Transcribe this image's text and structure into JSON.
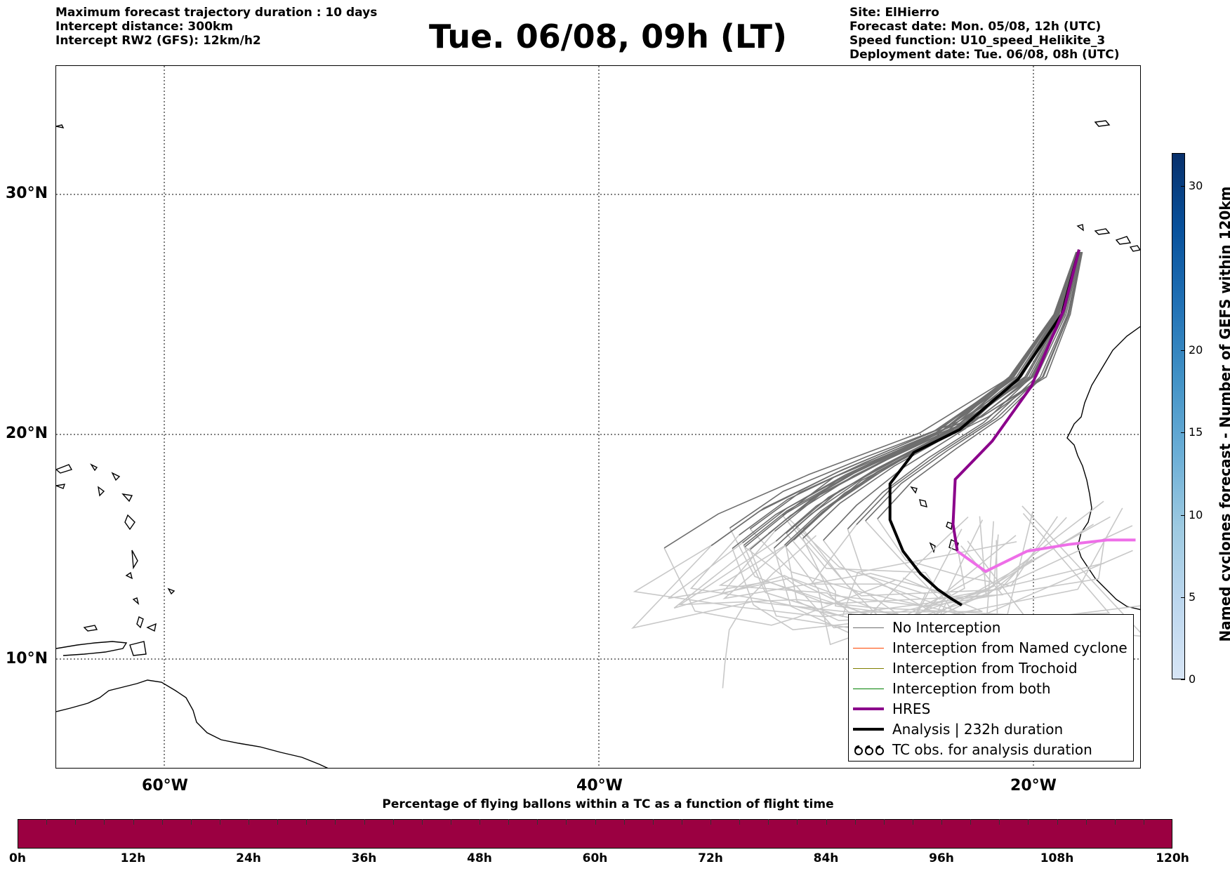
{
  "header": {
    "left_lines": [
      "Maximum forecast trajectory duration : 10 days",
      "Intercept distance: 300km",
      "Intercept RW2 (GFS):  12km/h2"
    ],
    "title": "Tue. 06/08, 09h (LT)",
    "right_lines": [
      "Site: ElHierro",
      "Forecast date: Mon. 05/08, 12h (UTC)",
      "Speed function: U10_speed_Helikite_3",
      "Deployment date: Tue. 06/08, 08h (UTC)"
    ]
  },
  "map": {
    "lon_range": [
      -65,
      15
    ],
    "lat_range": [
      4.5,
      33.8
    ],
    "gridline_style": "dotted",
    "latitude_labels": [
      {
        "lat": 30,
        "text": "30°N"
      },
      {
        "lat": 20,
        "text": "20°N"
      },
      {
        "lat": 10,
        "text": "10°N"
      }
    ],
    "longitude_labels": [
      {
        "lon": -60,
        "text": "60°W"
      },
      {
        "lon": -40,
        "text": "40°W"
      },
      {
        "lon": -20,
        "text": "20°W"
      }
    ],
    "colors": {
      "no_interception": "#6e6e6e",
      "light_trajectories": "#c8c8c8",
      "hres_violet": "#8b008b",
      "hres_pink": "#ee6ee8",
      "analysis": "#000000",
      "coastline": "#000000"
    },
    "hres_track": [
      [
        -17.9,
        27.7
      ],
      [
        -18.6,
        25.2
      ],
      [
        -20.1,
        22.0
      ],
      [
        -21.9,
        19.7
      ],
      [
        -23.6,
        18.0
      ],
      [
        -23.7,
        16.0
      ],
      [
        -23.5,
        14.8
      ],
      [
        -22.2,
        13.9
      ],
      [
        -20.3,
        14.8
      ],
      [
        -18.4,
        15.1
      ],
      [
        -16.6,
        15.3
      ],
      [
        -15.3,
        15.3
      ]
    ],
    "analysis_track": [
      [
        -17.9,
        27.7
      ],
      [
        -18.7,
        25.0
      ],
      [
        -20.7,
        22.3
      ],
      [
        -23.4,
        20.2
      ],
      [
        -25.5,
        19.2
      ],
      [
        -26.6,
        17.8
      ],
      [
        -26.6,
        16.2
      ],
      [
        -26.0,
        14.8
      ],
      [
        -25.2,
        13.8
      ],
      [
        -24.4,
        13.1
      ],
      [
        -23.8,
        12.7
      ],
      [
        -23.3,
        12.4
      ]
    ],
    "trajectory_count_shown": 30
  },
  "legend": {
    "items": [
      {
        "label": "No Interception",
        "color": "#6e6e6e",
        "width": 1.5,
        "style": "line"
      },
      {
        "label": "Interception from Named cyclone",
        "color": "#ff4500",
        "width": 1.5,
        "style": "line"
      },
      {
        "label": "Interception from Trochoid",
        "color": "#808000",
        "width": 1.5,
        "style": "line"
      },
      {
        "label": "Interception from both",
        "color": "#008000",
        "width": 1.5,
        "style": "line"
      },
      {
        "label": "HRES",
        "color": "#8b008b",
        "width": 4,
        "style": "line"
      },
      {
        "label": "Analysis | 232h duration",
        "color": "#000000",
        "width": 4,
        "style": "line"
      },
      {
        "label": "TC obs. for analysis duration",
        "color": "#000000",
        "width": 2,
        "style": "cyclone-symbols-icon"
      }
    ]
  },
  "colorbar": {
    "label": "Named cyclones forecast - Number of GEFS within 120km",
    "ticks": [
      0,
      5,
      10,
      15,
      20,
      30
    ],
    "range": [
      0,
      32
    ],
    "colors": [
      "#d7e5f5",
      "#bdd7ee",
      "#9ecae1",
      "#6baed6",
      "#4292c6",
      "#2171b5",
      "#08519c",
      "#08306b"
    ]
  },
  "time_bar": {
    "title": "Percentage of flying ballons within a TC as a function of flight time",
    "ticks": [
      "0h",
      "12h",
      "24h",
      "36h",
      "48h",
      "60h",
      "72h",
      "84h",
      "96h",
      "108h",
      "120h"
    ],
    "fill_color": "#9b0041"
  }
}
